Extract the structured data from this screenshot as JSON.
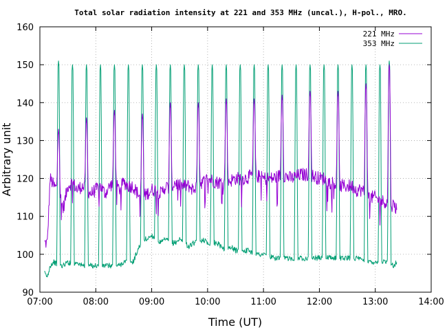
{
  "chart_data": {
    "type": "line",
    "title": "Total solar radiation intensity at 221 and 353 MHz (uncal.), H-pol., MRO.",
    "xlabel": "Time (UT)",
    "ylabel": "Arbitrary unit",
    "xlim": [
      "07:00",
      "14:00"
    ],
    "ylim": [
      90,
      160
    ],
    "x_ticks": [
      "07:00",
      "08:00",
      "09:00",
      "10:00",
      "11:00",
      "12:00",
      "13:00",
      "14:00"
    ],
    "y_ticks": [
      90,
      100,
      110,
      120,
      130,
      140,
      150,
      160
    ],
    "grid": true,
    "legend_position": "top-right",
    "series": [
      {
        "name": "221 MHz",
        "color": "#9400d3",
        "time_range": [
          "07:05",
          "13:23"
        ],
        "baseline": [
          [
            "07:05",
            103
          ],
          [
            "07:08",
            103
          ],
          [
            "07:11",
            120
          ],
          [
            "07:15",
            118
          ],
          [
            "07:20",
            117
          ],
          [
            "07:25",
            112
          ],
          [
            "07:30",
            118
          ],
          [
            "07:35",
            119
          ],
          [
            "07:40",
            117
          ],
          [
            "07:45",
            118
          ],
          [
            "07:50",
            117
          ],
          [
            "07:55",
            116
          ],
          [
            "08:00",
            117
          ],
          [
            "08:05",
            118
          ],
          [
            "08:10",
            116
          ],
          [
            "08:15",
            118
          ],
          [
            "08:20",
            119
          ],
          [
            "08:25",
            117
          ],
          [
            "08:30",
            119
          ],
          [
            "08:35",
            118
          ],
          [
            "08:40",
            118
          ],
          [
            "08:45",
            116
          ],
          [
            "08:50",
            115
          ],
          [
            "08:55",
            116
          ],
          [
            "09:00",
            117
          ],
          [
            "09:05",
            117
          ],
          [
            "09:10",
            116
          ],
          [
            "09:15",
            118
          ],
          [
            "09:20",
            117
          ],
          [
            "09:25",
            119
          ],
          [
            "09:30",
            118
          ],
          [
            "09:35",
            118
          ],
          [
            "09:40",
            118
          ],
          [
            "09:45",
            117
          ],
          [
            "09:50",
            119
          ],
          [
            "09:55",
            119
          ],
          [
            "10:00",
            120
          ],
          [
            "10:10",
            119
          ],
          [
            "10:20",
            119
          ],
          [
            "10:30",
            120
          ],
          [
            "10:40",
            120
          ],
          [
            "10:50",
            121
          ],
          [
            "11:00",
            120
          ],
          [
            "11:10",
            120
          ],
          [
            "11:20",
            121
          ],
          [
            "11:30",
            120
          ],
          [
            "11:40",
            121
          ],
          [
            "11:50",
            121
          ],
          [
            "12:00",
            120
          ],
          [
            "12:05",
            120
          ],
          [
            "12:10",
            119
          ],
          [
            "12:15",
            119
          ],
          [
            "12:20",
            118
          ],
          [
            "12:25",
            118
          ],
          [
            "12:30",
            118
          ],
          [
            "12:35",
            118
          ],
          [
            "12:40",
            117
          ],
          [
            "12:45",
            117
          ],
          [
            "12:50",
            116
          ],
          [
            "12:55",
            115
          ],
          [
            "13:00",
            115
          ],
          [
            "13:05",
            114
          ],
          [
            "13:10",
            114
          ],
          [
            "13:15",
            113
          ],
          [
            "13:20",
            113
          ],
          [
            "13:23",
            112
          ]
        ],
        "spike_peaks": [
          [
            "07:20",
            133
          ],
          [
            "07:50",
            136
          ],
          [
            "08:20",
            138
          ],
          [
            "08:50",
            137
          ],
          [
            "09:20",
            140
          ],
          [
            "09:50",
            140
          ],
          [
            "10:20",
            141
          ],
          [
            "10:50",
            141
          ],
          [
            "11:20",
            142
          ],
          [
            "11:50",
            143
          ],
          [
            "12:20",
            143
          ],
          [
            "12:50",
            145
          ],
          [
            "13:15",
            150
          ]
        ]
      },
      {
        "name": "353 MHz",
        "color": "#009e73",
        "time_range": [
          "07:05",
          "13:23"
        ],
        "baseline": [
          [
            "07:05",
            95
          ],
          [
            "07:08",
            94
          ],
          [
            "07:11",
            97
          ],
          [
            "07:15",
            98
          ],
          [
            "07:20",
            97
          ],
          [
            "07:25",
            97
          ],
          [
            "07:30",
            98
          ],
          [
            "07:35",
            97
          ],
          [
            "07:40",
            98
          ],
          [
            "07:45",
            97
          ],
          [
            "07:50",
            97
          ],
          [
            "07:55",
            97
          ],
          [
            "08:00",
            97
          ],
          [
            "08:05",
            97
          ],
          [
            "08:10",
            97
          ],
          [
            "08:15",
            97
          ],
          [
            "08:20",
            97
          ],
          [
            "08:25",
            97
          ],
          [
            "08:30",
            98
          ],
          [
            "08:35",
            98
          ],
          [
            "08:40",
            98
          ],
          [
            "08:45",
            101
          ],
          [
            "08:50",
            104
          ],
          [
            "08:55",
            104
          ],
          [
            "09:00",
            105
          ],
          [
            "09:05",
            104
          ],
          [
            "09:10",
            103
          ],
          [
            "09:15",
            104
          ],
          [
            "09:20",
            103
          ],
          [
            "09:25",
            103
          ],
          [
            "09:30",
            104
          ],
          [
            "09:35",
            103
          ],
          [
            "09:40",
            102
          ],
          [
            "09:45",
            103
          ],
          [
            "09:50",
            103
          ],
          [
            "09:55",
            104
          ],
          [
            "10:00",
            103
          ],
          [
            "10:05",
            103
          ],
          [
            "10:10",
            103
          ],
          [
            "10:15",
            102
          ],
          [
            "10:20",
            101
          ],
          [
            "10:25",
            102
          ],
          [
            "10:30",
            101
          ],
          [
            "10:35",
            101
          ],
          [
            "10:40",
            101
          ],
          [
            "10:45",
            101
          ],
          [
            "10:50",
            100
          ],
          [
            "10:55",
            100
          ],
          [
            "11:00",
            100
          ],
          [
            "11:10",
            99
          ],
          [
            "11:20",
            99
          ],
          [
            "11:30",
            99
          ],
          [
            "11:40",
            99
          ],
          [
            "11:50",
            99
          ],
          [
            "12:00",
            99
          ],
          [
            "12:10",
            99
          ],
          [
            "12:20",
            99
          ],
          [
            "12:30",
            99
          ],
          [
            "12:40",
            99
          ],
          [
            "12:50",
            98
          ],
          [
            "13:00",
            98
          ],
          [
            "13:10",
            98
          ],
          [
            "13:15",
            98
          ],
          [
            "13:20",
            97
          ],
          [
            "13:23",
            98
          ]
        ],
        "spike_peaks": [
          [
            "07:20",
            151
          ],
          [
            "07:35",
            150
          ],
          [
            "07:50",
            150
          ],
          [
            "08:05",
            150
          ],
          [
            "08:20",
            150
          ],
          [
            "08:35",
            150
          ],
          [
            "08:50",
            150
          ],
          [
            "09:05",
            150
          ],
          [
            "09:20",
            150
          ],
          [
            "09:35",
            150
          ],
          [
            "09:50",
            150
          ],
          [
            "10:05",
            150
          ],
          [
            "10:20",
            150
          ],
          [
            "10:35",
            150
          ],
          [
            "10:50",
            150
          ],
          [
            "11:05",
            150
          ],
          [
            "11:20",
            150
          ],
          [
            "11:35",
            150
          ],
          [
            "11:50",
            150
          ],
          [
            "12:05",
            150
          ],
          [
            "12:20",
            150
          ],
          [
            "12:35",
            150
          ],
          [
            "12:50",
            150
          ],
          [
            "13:05",
            150
          ],
          [
            "13:15",
            151
          ]
        ]
      }
    ]
  }
}
